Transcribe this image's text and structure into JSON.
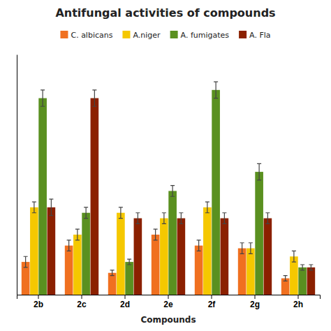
{
  "chart_data": {
    "type": "bar",
    "title": "Antifungal activities of compounds",
    "xlabel": "Compounds",
    "categories": [
      "2b",
      "2c",
      "2d",
      "2e",
      "2f",
      "2g",
      "2h"
    ],
    "series": [
      {
        "name": "C. albicans",
        "color": "#F07020",
        "values": [
          12,
          18,
          8,
          22,
          18,
          17,
          6
        ],
        "errors": [
          2,
          2,
          1,
          2,
          2,
          2,
          1
        ]
      },
      {
        "name": "A.niger",
        "color": "#F5C800",
        "values": [
          32,
          22,
          30,
          28,
          32,
          17,
          14
        ],
        "errors": [
          2,
          2,
          2,
          2,
          2,
          2,
          2
        ]
      },
      {
        "name": "A. fumigates",
        "color": "#5A9020",
        "values": [
          72,
          30,
          12,
          38,
          75,
          45,
          10
        ],
        "errors": [
          3,
          2,
          1,
          2,
          3,
          3,
          1
        ]
      },
      {
        "name": "A. Fla",
        "color": "#8B2000",
        "values": [
          32,
          72,
          28,
          28,
          28,
          28,
          10
        ],
        "errors": [
          3,
          3,
          2,
          2,
          2,
          2,
          1
        ]
      }
    ],
    "ylim": [
      0,
      88
    ],
    "yticks": [],
    "grid": false,
    "legend": "top",
    "tick_labels": "x"
  }
}
